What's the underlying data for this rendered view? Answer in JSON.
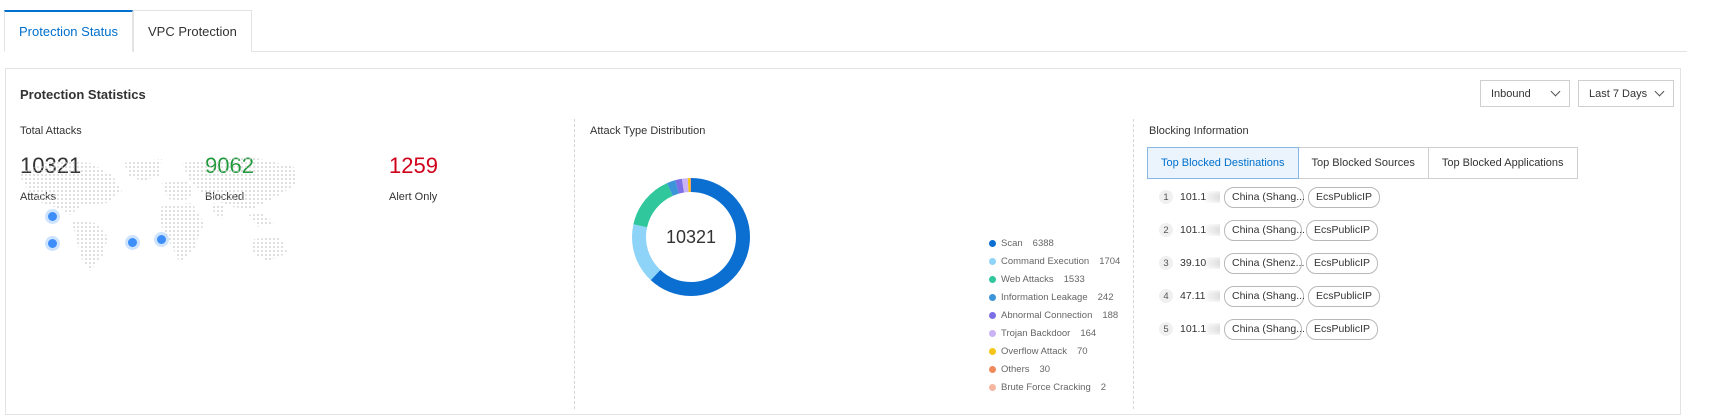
{
  "tabs": [
    {
      "label": "Protection Status",
      "active": true
    },
    {
      "label": "VPC Protection",
      "active": false
    }
  ],
  "panel": {
    "title": "Protection Statistics",
    "direction_select": "Inbound",
    "range_select": "Last 7 Days"
  },
  "totals": {
    "label": "Total Attacks",
    "attacks": {
      "value": "10321",
      "caption": "Attacks",
      "color": "#333333"
    },
    "blocked": {
      "value": "9062",
      "caption": "Blocked",
      "color": "#1f9a3a"
    },
    "alert": {
      "value": "1259",
      "caption": "Alert Only",
      "color": "#d0021b"
    }
  },
  "distribution": {
    "label": "Attack Type Distribution",
    "center_total": "10321",
    "items": [
      {
        "name": "Scan",
        "value": 6388,
        "color": "#0a6fd1"
      },
      {
        "name": "Command Execution",
        "value": 1704,
        "color": "#8dd4f8"
      },
      {
        "name": "Web Attacks",
        "value": 1533,
        "color": "#2fc79b"
      },
      {
        "name": "Information Leakage",
        "value": 242,
        "color": "#3c94d9"
      },
      {
        "name": "Abnormal Connection",
        "value": 188,
        "color": "#7b6fe6"
      },
      {
        "name": "Trojan Backdoor",
        "value": 164,
        "color": "#c9b3f5"
      },
      {
        "name": "Overflow Attack",
        "value": 70,
        "color": "#f5c518"
      },
      {
        "name": "Others",
        "value": 30,
        "color": "#f08a5d"
      },
      {
        "name": "Brute Force Cracking",
        "value": 2,
        "color": "#f5b7a0"
      }
    ]
  },
  "blocking": {
    "label": "Blocking Information",
    "tabs": [
      {
        "label": "Top Blocked Destinations",
        "active": true
      },
      {
        "label": "Top Blocked Sources",
        "active": false
      },
      {
        "label": "Top Blocked Applications",
        "active": false
      }
    ],
    "rows": [
      {
        "index": "1",
        "ip": "101.1",
        "ip_tail": "0",
        "region": "China (Shang...",
        "type": "EcsPublicIP"
      },
      {
        "index": "2",
        "ip": "101.1",
        "ip_tail": "",
        "region": "China (Shang...",
        "type": "EcsPublicIP"
      },
      {
        "index": "3",
        "ip": "39.10",
        "ip_tail": "",
        "region": "China (Shenz...",
        "type": "EcsPublicIP"
      },
      {
        "index": "4",
        "ip": "47.11",
        "ip_tail": "",
        "region": "China (Shang...",
        "type": "EcsPublicIP"
      },
      {
        "index": "5",
        "ip": "101.1",
        "ip_tail": "",
        "region": "China (Shang...",
        "type": "EcsPublicIP"
      }
    ]
  }
}
